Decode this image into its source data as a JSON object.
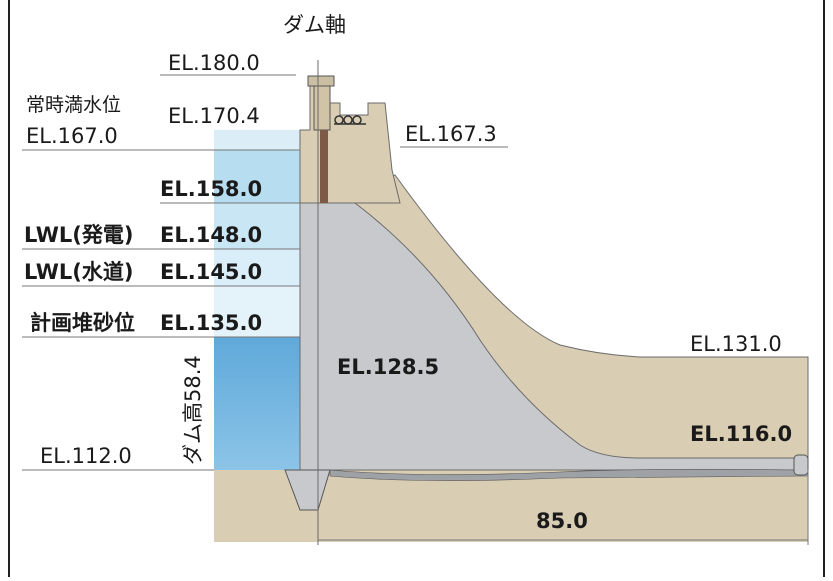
{
  "diagram": {
    "dam_axis": "ダム軸",
    "levels": {
      "crest": "EL.180.0",
      "flood_water": "EL.170.4",
      "normal_water_title": "常時満水位",
      "normal_water": "EL.167.0",
      "crest_road": "EL.167.3",
      "el158": "EL.158.0",
      "lwl_power_label": "LWL(発電)",
      "lwl_power": "EL.148.0",
      "lwl_water_label": "LWL(水道)",
      "lwl_water": "EL.145.0",
      "sediment_label": "計画堆砂位",
      "sediment": "EL.135.0",
      "foundation": "EL.112.0",
      "body": "EL.128.5",
      "downstream_fill": "EL.131.0",
      "downstream_bed": "EL.116.0"
    },
    "dam_height": "ダム高58.4",
    "base_length": "85.0"
  },
  "colors": {
    "water_light": "#cfe7f3",
    "water_mid": "#a9d6ec",
    "water_deep": "#5aa6d8",
    "concrete": "#c7c9cc",
    "earth": "#d9cdb4",
    "dark_earth": "#7c5a45"
  }
}
